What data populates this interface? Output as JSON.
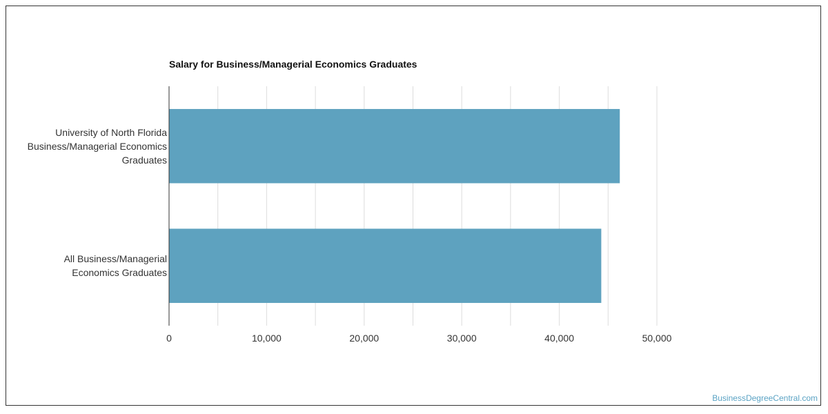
{
  "chart_data": {
    "type": "bar",
    "orientation": "horizontal",
    "title": "Salary for Business/Managerial Economics Graduates",
    "categories": [
      "University of North Florida Business/Managerial Economics Graduates",
      "All Business/Managerial Economics Graduates"
    ],
    "category_lines": [
      [
        "University of North Florida",
        "Business/Managerial Economics",
        "Graduates"
      ],
      [
        "All Business/Managerial",
        "Economics Graduates"
      ]
    ],
    "values": [
      46200,
      44300
    ],
    "xlim": [
      0,
      50000
    ],
    "ticks": [
      "0",
      "10,000",
      "20,000",
      "30,000",
      "40,000",
      "50,000"
    ],
    "grid": true,
    "bar_color": "#5ea2bf",
    "legend": "none"
  },
  "watermark": "BusinessDegreeCentral.com"
}
